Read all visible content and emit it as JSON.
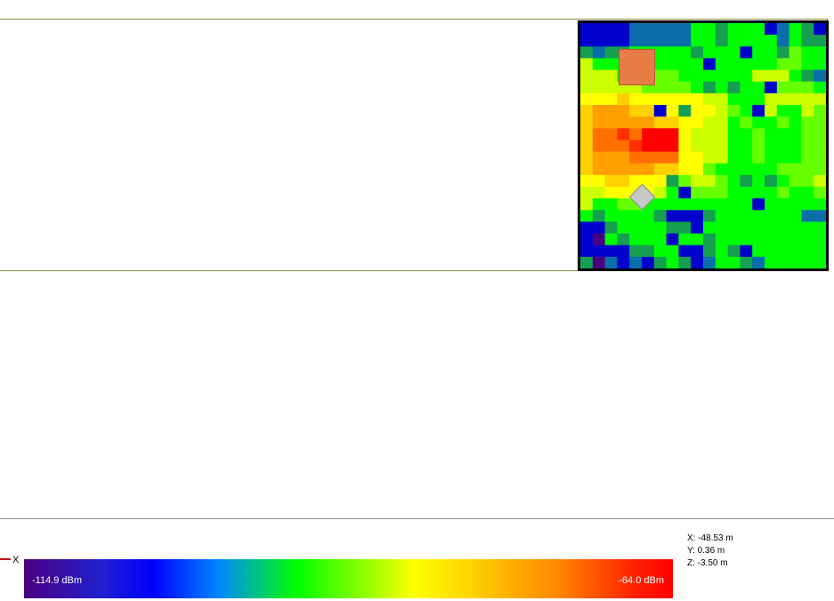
{
  "axis": {
    "x_label": "X"
  },
  "colorbar": {
    "min_label": "-114.9 dBm",
    "max_label": "-64.0 dBm"
  },
  "coordinates": {
    "x": "X: -48.53 m",
    "y": "Y: 0.36 m",
    "z": "Z: -3.50 m"
  },
  "heatmap": {
    "palette": [
      "#0000cc",
      "#0a6eaa",
      "#14a050",
      "#00ff00",
      "#66ff00",
      "#ccff00",
      "#ffff00",
      "#ffd000",
      "#ffa000",
      "#ff7000",
      "#ff3000",
      "#ff0000",
      "#4b0082"
    ],
    "grid": [
      [
        0,
        0,
        0,
        0,
        1,
        1,
        1,
        1,
        1,
        3,
        3,
        2,
        3,
        3,
        3,
        0,
        1,
        3,
        2,
        0
      ],
      [
        0,
        0,
        0,
        0,
        1,
        1,
        1,
        1,
        1,
        3,
        3,
        2,
        3,
        3,
        3,
        3,
        1,
        3,
        2,
        2
      ],
      [
        2,
        1,
        2,
        2,
        3,
        3,
        3,
        3,
        3,
        2,
        3,
        3,
        3,
        0,
        3,
        3,
        2,
        4,
        3,
        3
      ],
      [
        5,
        3,
        3,
        3,
        3,
        4,
        3,
        3,
        3,
        3,
        0,
        3,
        3,
        3,
        3,
        3,
        4,
        4,
        3,
        3
      ],
      [
        5,
        5,
        5,
        3,
        3,
        4,
        4,
        4,
        3,
        3,
        3,
        3,
        3,
        3,
        5,
        5,
        5,
        3,
        2,
        1
      ],
      [
        5,
        5,
        5,
        5,
        5,
        4,
        4,
        4,
        4,
        3,
        2,
        3,
        2,
        3,
        3,
        0,
        4,
        4,
        4,
        3
      ],
      [
        6,
        6,
        6,
        7,
        6,
        6,
        6,
        6,
        6,
        6,
        5,
        5,
        3,
        3,
        3,
        5,
        5,
        5,
        5,
        5
      ],
      [
        7,
        8,
        8,
        8,
        7,
        7,
        0,
        6,
        2,
        6,
        6,
        5,
        4,
        3,
        0,
        5,
        3,
        3,
        5,
        4
      ],
      [
        7,
        8,
        8,
        8,
        8,
        8,
        7,
        7,
        6,
        6,
        5,
        5,
        3,
        4,
        3,
        3,
        4,
        3,
        4,
        4
      ],
      [
        7,
        9,
        9,
        10,
        9,
        11,
        11,
        11,
        6,
        5,
        5,
        5,
        3,
        3,
        4,
        3,
        3,
        3,
        4,
        4
      ],
      [
        7,
        9,
        9,
        9,
        10,
        11,
        11,
        11,
        6,
        5,
        5,
        5,
        3,
        3,
        4,
        3,
        3,
        3,
        4,
        4
      ],
      [
        7,
        8,
        8,
        8,
        9,
        9,
        9,
        9,
        6,
        6,
        5,
        5,
        3,
        3,
        4,
        3,
        3,
        3,
        4,
        4
      ],
      [
        7,
        8,
        8,
        8,
        8,
        8,
        7,
        7,
        6,
        6,
        4,
        3,
        3,
        3,
        3,
        3,
        4,
        4,
        4,
        4
      ],
      [
        6,
        6,
        7,
        7,
        6,
        6,
        6,
        2,
        4,
        5,
        5,
        4,
        3,
        2,
        3,
        2,
        3,
        4,
        4,
        5
      ],
      [
        5,
        5,
        6,
        6,
        6,
        6,
        5,
        3,
        0,
        4,
        4,
        4,
        3,
        3,
        3,
        3,
        4,
        3,
        3,
        4
      ],
      [
        5,
        3,
        3,
        4,
        4,
        3,
        3,
        3,
        3,
        3,
        3,
        3,
        3,
        3,
        0,
        3,
        3,
        3,
        3,
        3
      ],
      [
        3,
        2,
        3,
        3,
        3,
        3,
        2,
        0,
        0,
        0,
        2,
        3,
        3,
        3,
        3,
        3,
        3,
        3,
        1,
        1
      ],
      [
        0,
        0,
        2,
        3,
        3,
        3,
        3,
        2,
        2,
        0,
        3,
        3,
        3,
        3,
        3,
        3,
        3,
        3,
        3,
        3
      ],
      [
        0,
        12,
        3,
        2,
        3,
        3,
        3,
        0,
        3,
        3,
        2,
        3,
        3,
        3,
        3,
        3,
        3,
        3,
        3,
        3
      ],
      [
        0,
        0,
        0,
        0,
        2,
        2,
        3,
        3,
        0,
        0,
        2,
        3,
        2,
        0,
        3,
        3,
        3,
        3,
        3,
        3
      ],
      [
        2,
        12,
        1,
        0,
        1,
        0,
        2,
        3,
        2,
        0,
        1,
        3,
        3,
        2,
        1,
        3,
        3,
        3,
        3,
        3
      ]
    ]
  },
  "colors": {
    "transmitter": "#e87c47",
    "receiver": "#c8c8c8",
    "panel_border": "#8a8a4a"
  }
}
